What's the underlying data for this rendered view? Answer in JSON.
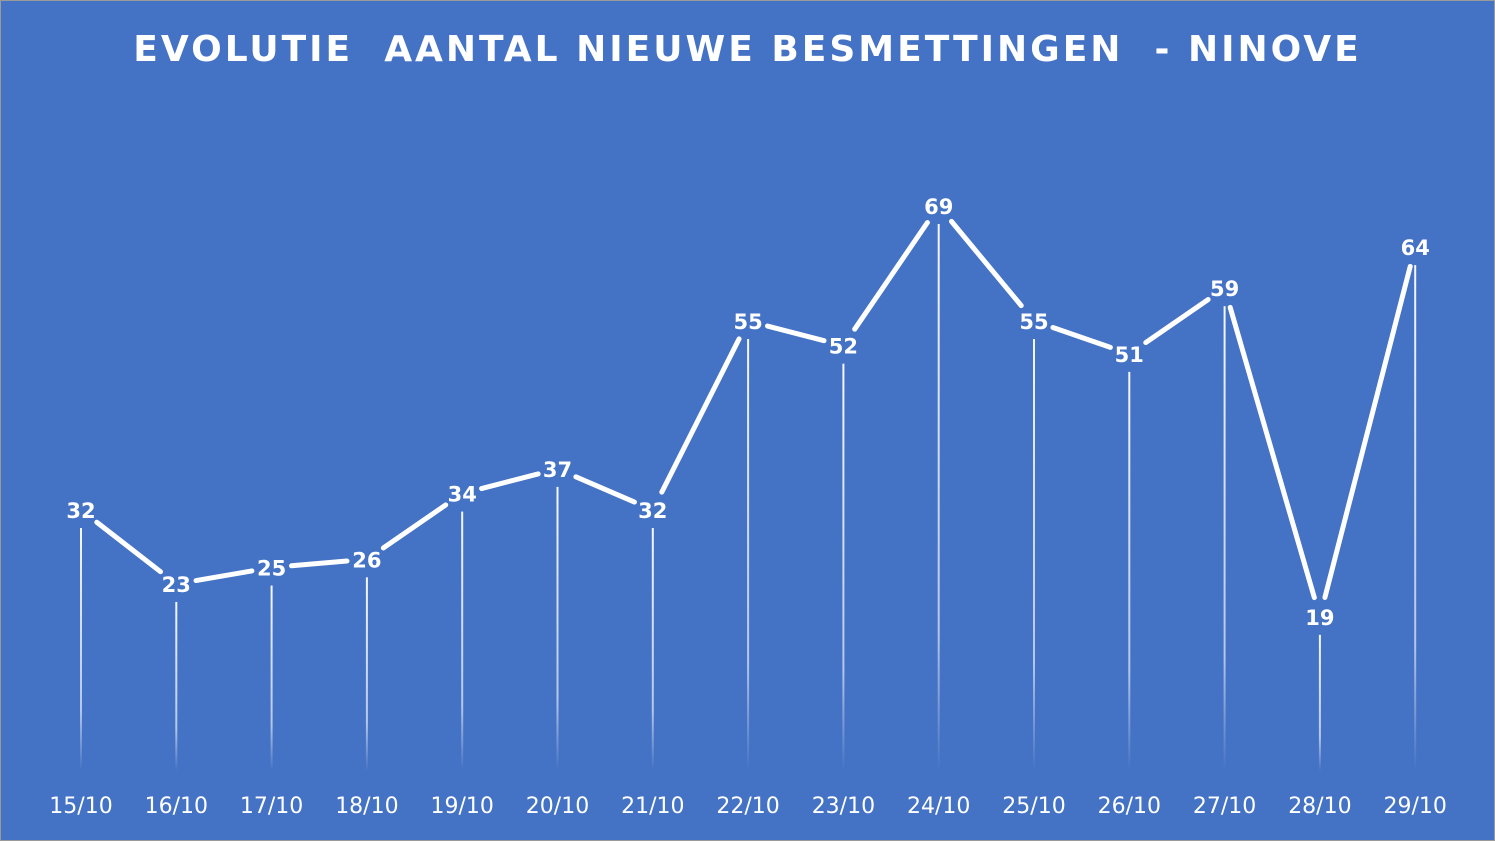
{
  "chart_data": {
    "type": "line",
    "title": "EVOLUTIE  AANTAL NIEUWE BESMETTINGEN  - NINOVE",
    "categories": [
      "15/10",
      "16/10",
      "17/10",
      "18/10",
      "19/10",
      "20/10",
      "21/10",
      "22/10",
      "23/10",
      "24/10",
      "25/10",
      "26/10",
      "27/10",
      "28/10",
      "29/10"
    ],
    "values": [
      32,
      23,
      25,
      26,
      34,
      37,
      32,
      55,
      52,
      69,
      55,
      51,
      59,
      19,
      64
    ],
    "xlabel": "",
    "ylabel": "",
    "ylim": [
      0,
      75
    ],
    "grid": false,
    "drop_lines": true,
    "data_labels": true,
    "colors": {
      "background": "#4472C4",
      "line": "#FFFFFF",
      "text": "#FFFFFF"
    }
  }
}
